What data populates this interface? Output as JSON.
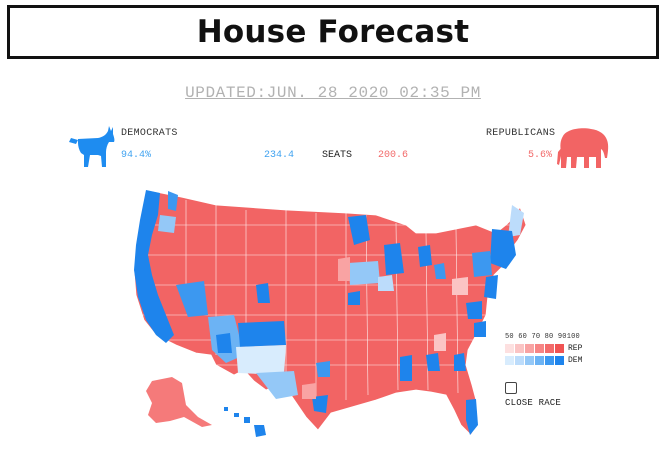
{
  "header": {
    "title": "House Forecast"
  },
  "updated": "UPDATED:JUN. 28 2020 02:35 PM",
  "democrats": {
    "label": "DEMOCRATS",
    "probability": "94.4%",
    "seats": "234.4",
    "color": "#1e8cf0"
  },
  "republicans": {
    "label": "REPUBLICANS",
    "probability": "5.6%",
    "seats": "200.6",
    "color": "#f26464"
  },
  "seats_label": "SEATS",
  "legend": {
    "ticks": [
      "50",
      "60",
      "70",
      "80",
      "90",
      "100"
    ],
    "rep_label": "REP",
    "dem_label": "DEM",
    "rep_colors": [
      "#fde0e0",
      "#fbc4c4",
      "#f9a3a3",
      "#f78585",
      "#f36b6b",
      "#f05353"
    ],
    "dem_colors": [
      "#d8ecfd",
      "#bcdcfb",
      "#94c8f7",
      "#6cb3f4",
      "#3c98f0",
      "#1e84ec"
    ]
  },
  "close_race": {
    "label": "CLOSE RACE",
    "checked": false
  },
  "icons": {
    "democrats": "donkey-icon",
    "republicans": "elephant-icon"
  }
}
